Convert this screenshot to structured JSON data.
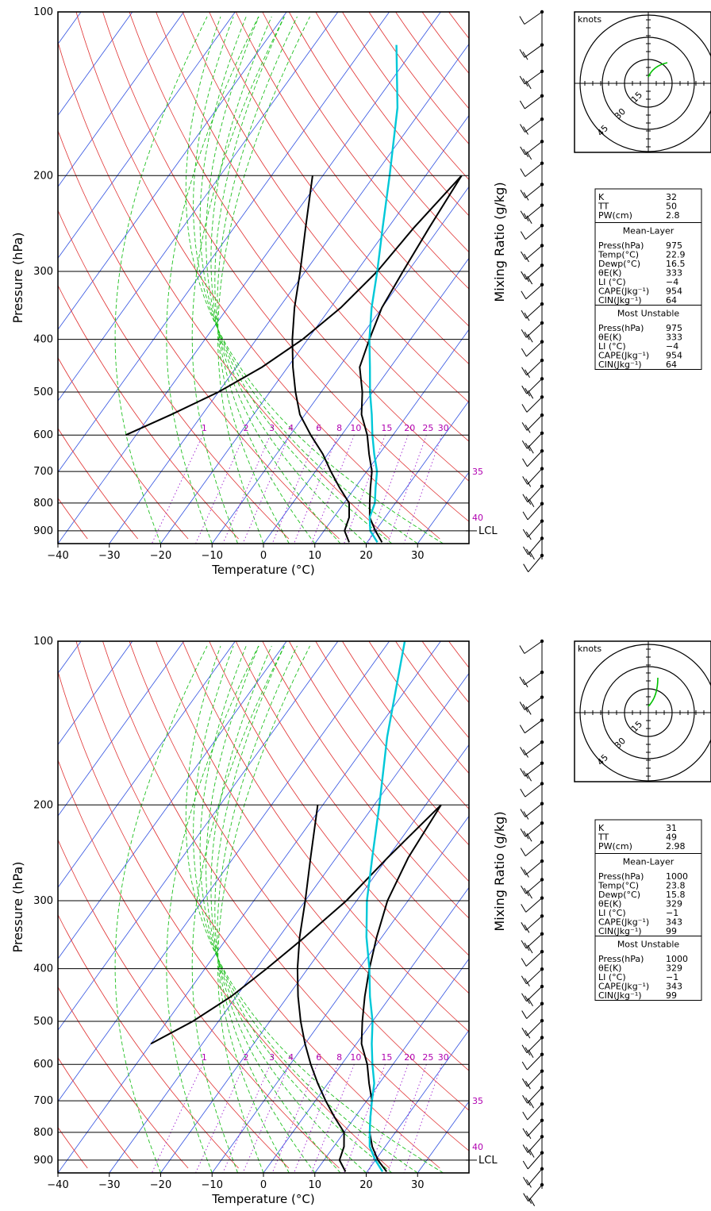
{
  "chart_data": [
    {
      "type": "line",
      "title": "",
      "xlabel": "Temperature (°C)",
      "ylabel": "Pressure (hPa)",
      "right_label": "Mixing Ratio (g/kg)",
      "xlim": [
        -40,
        40
      ],
      "ylim": [
        950,
        100
      ],
      "y_log_scale": true,
      "x_ticks": [
        "−40",
        "−30",
        "−20",
        "−10",
        "0",
        "10",
        "20",
        "30"
      ],
      "y_ticks": [
        "100",
        "200",
        "300",
        "400",
        "500",
        "600",
        "700",
        "800",
        "900"
      ],
      "mixing_ratio_labels": [
        "1",
        "2",
        "3",
        "4",
        "6",
        "8",
        "10",
        "15",
        "20",
        "25",
        "30"
      ],
      "side_labels": [
        "35",
        "40"
      ],
      "lcl_label": "LCL",
      "lcl_pressure": 900,
      "series": [
        {
          "color": "#000000",
          "points": [
            [
              22.9,
              945
            ],
            [
              20,
              900
            ],
            [
              17,
              850
            ],
            [
              15,
              800
            ],
            [
              13,
              750
            ],
            [
              11,
              700
            ],
            [
              8,
              650
            ],
            [
              5,
              600
            ],
            [
              1,
              550
            ],
            [
              -2,
              500
            ],
            [
              -6,
              450
            ],
            [
              -8,
              400
            ],
            [
              -10,
              350
            ],
            [
              -11,
              300
            ],
            [
              -12,
              250
            ],
            [
              -13,
              200
            ]
          ]
        },
        {
          "color": "#000000",
          "points": [
            [
              16.5,
              945
            ],
            [
              14,
              900
            ],
            [
              13,
              850
            ],
            [
              11,
              800
            ],
            [
              7,
              750
            ],
            [
              3,
              700
            ],
            [
              -1,
              650
            ],
            [
              -6,
              600
            ],
            [
              -11,
              550
            ],
            [
              -15,
              500
            ],
            [
              -19,
              450
            ],
            [
              -23,
              400
            ],
            [
              -27,
              350
            ],
            [
              -31,
              300
            ],
            [
              -36,
              250
            ],
            [
              -42,
              200
            ]
          ]
        },
        {
          "color": "#000000",
          "points": [
            [
              -13,
              200
            ],
            [
              -15,
              250
            ],
            [
              -16,
              300
            ],
            [
              -18,
              350
            ],
            [
              -21,
              400
            ],
            [
              -25,
              450
            ],
            [
              -30,
              500
            ],
            [
              -36,
              550
            ],
            [
              -42,
              600
            ]
          ]
        },
        {
          "color": "#00c8d8",
          "points": [
            [
              22,
              945
            ],
            [
              19,
              900
            ],
            [
              17,
              850
            ],
            [
              16,
              800
            ],
            [
              14,
              750
            ],
            [
              12,
              700
            ],
            [
              9,
              650
            ],
            [
              6,
              600
            ],
            [
              3,
              550
            ],
            [
              -0.5,
              500
            ],
            [
              -4,
              450
            ],
            [
              -8,
              400
            ],
            [
              -12,
              350
            ],
            [
              -16,
              300
            ],
            [
              -21,
              250
            ],
            [
              -27,
              200
            ],
            [
              -35,
              150
            ],
            [
              -44,
              115
            ]
          ]
        }
      ],
      "wind_barbs_count": 28,
      "hodograph": {
        "unit_label": "knots",
        "ring_labels": [
          "15",
          "30",
          "45"
        ],
        "trace_color": "#00c000"
      },
      "indices": {
        "K": "32",
        "TT": "50",
        "PW(cm)": "2.8",
        "mean_layer_title": "Mean-Layer",
        "mean_layer": [
          [
            "Press(hPa)",
            "975"
          ],
          [
            "Temp(°C)",
            "22.9"
          ],
          [
            "Dewp(°C)",
            "16.5"
          ],
          [
            "θE(K)",
            "333"
          ],
          [
            "LI (°C)",
            "−4"
          ],
          [
            "CAPE(Jkg⁻¹)",
            "954"
          ],
          [
            "CIN(Jkg⁻¹)",
            "64"
          ]
        ],
        "most_unstable_title": "Most Unstable",
        "most_unstable": [
          [
            "Press(hPa)",
            "975"
          ],
          [
            "θE(K)",
            "333"
          ],
          [
            "LI (°C)",
            "−4"
          ],
          [
            "CAPE(Jkg⁻¹)",
            "954"
          ],
          [
            "CIN(Jkg⁻¹)",
            "64"
          ]
        ]
      }
    },
    {
      "type": "line",
      "title": "",
      "xlabel": "Temperature (°C)",
      "ylabel": "Pressure (hPa)",
      "right_label": "Mixing Ratio (g/kg)",
      "xlim": [
        -40,
        40
      ],
      "ylim": [
        950,
        100
      ],
      "y_log_scale": true,
      "x_ticks": [
        "−40",
        "−30",
        "−20",
        "−10",
        "0",
        "10",
        "20",
        "30"
      ],
      "y_ticks": [
        "100",
        "200",
        "300",
        "400",
        "500",
        "600",
        "700",
        "800",
        "900"
      ],
      "mixing_ratio_labels": [
        "1",
        "2",
        "3",
        "4",
        "6",
        "8",
        "10",
        "15",
        "20",
        "25",
        "30"
      ],
      "side_labels": [
        "35",
        "40"
      ],
      "lcl_label": "LCL",
      "lcl_pressure": 900,
      "series": [
        {
          "color": "#000000",
          "points": [
            [
              23.8,
              945
            ],
            [
              20.5,
              900
            ],
            [
              17.5,
              850
            ],
            [
              15,
              800
            ],
            [
              13,
              750
            ],
            [
              11,
              700
            ],
            [
              8,
              650
            ],
            [
              5,
              600
            ],
            [
              1,
              550
            ],
            [
              -2,
              500
            ],
            [
              -5,
              450
            ],
            [
              -8,
              400
            ],
            [
              -11,
              350
            ],
            [
              -14,
              300
            ],
            [
              -16,
              250
            ],
            [
              -17,
              200
            ]
          ]
        },
        {
          "color": "#000000",
          "points": [
            [
              15.8,
              945
            ],
            [
              13,
              900
            ],
            [
              12,
              850
            ],
            [
              10,
              800
            ],
            [
              6,
              750
            ],
            [
              2,
              700
            ],
            [
              -2,
              650
            ],
            [
              -6,
              600
            ],
            [
              -10,
              550
            ],
            [
              -14,
              500
            ],
            [
              -18,
              450
            ],
            [
              -22,
              400
            ],
            [
              -26,
              350
            ],
            [
              -30,
              300
            ],
            [
              -35,
              250
            ],
            [
              -41,
              200
            ]
          ]
        },
        {
          "color": "#000000",
          "points": [
            [
              -17,
              200
            ],
            [
              -20,
              250
            ],
            [
              -22,
              300
            ],
            [
              -25,
              350
            ],
            [
              -28,
              400
            ],
            [
              -31,
              450
            ],
            [
              -35,
              500
            ],
            [
              -40,
              550
            ]
          ]
        },
        {
          "color": "#00c8d8",
          "points": [
            [
              23,
              945
            ],
            [
              20,
              900
            ],
            [
              17,
              850
            ],
            [
              15,
              800
            ],
            [
              13,
              750
            ],
            [
              11,
              700
            ],
            [
              9,
              650
            ],
            [
              6,
              600
            ],
            [
              3,
              550
            ],
            [
              0,
              500
            ],
            [
              -4,
              450
            ],
            [
              -8,
              400
            ],
            [
              -13,
              350
            ],
            [
              -18,
              300
            ],
            [
              -23,
              250
            ],
            [
              -29,
              200
            ],
            [
              -37,
              150
            ],
            [
              -47,
              100
            ]
          ]
        }
      ],
      "wind_barbs_count": 30,
      "hodograph": {
        "unit_label": "knots",
        "ring_labels": [
          "15",
          "30",
          "45"
        ],
        "trace_color": "#00c000"
      },
      "indices": {
        "K": "31",
        "TT": "49",
        "PW(cm)": "2.98",
        "mean_layer_title": "Mean-Layer",
        "mean_layer": [
          [
            "Press(hPa)",
            "1000"
          ],
          [
            "Temp(°C)",
            "23.8"
          ],
          [
            "Dewp(°C)",
            "15.8"
          ],
          [
            "θE(K)",
            "329"
          ],
          [
            "LI (°C)",
            "−1"
          ],
          [
            "CAPE(Jkg⁻¹)",
            "343"
          ],
          [
            "CIN(Jkg⁻¹)",
            "99"
          ]
        ],
        "most_unstable_title": "Most Unstable",
        "most_unstable": [
          [
            "Press(hPa)",
            "1000"
          ],
          [
            "θE(K)",
            "329"
          ],
          [
            "LI (°C)",
            "−1"
          ],
          [
            "CAPE(Jkg⁻¹)",
            "343"
          ],
          [
            "CIN(Jkg⁻¹)",
            "99"
          ]
        ]
      }
    }
  ]
}
